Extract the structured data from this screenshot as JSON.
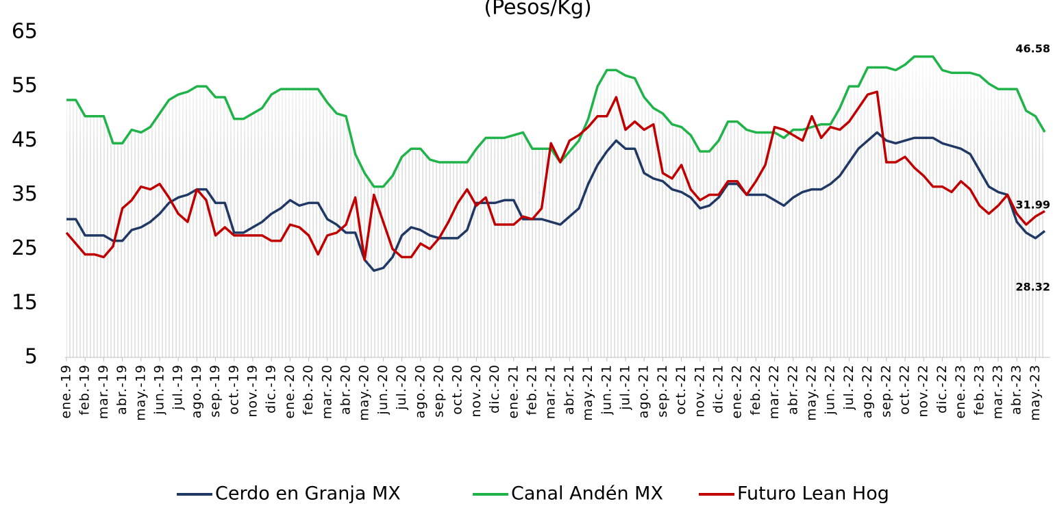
{
  "chart_data": {
    "type": "line",
    "title": "(Pesos/Kg)",
    "categories": [
      "ene.-19",
      null,
      "feb.-19",
      null,
      "mar.-19",
      null,
      "abr.-19",
      null,
      "may.-19",
      null,
      "jun.-19",
      null,
      "jul.-19",
      null,
      "ago.-19",
      null,
      "sep.-19",
      null,
      "oct.-19",
      null,
      "nov.-19",
      null,
      "dic.-19",
      null,
      "ene.-20",
      null,
      "feb.-20",
      null,
      "mar.-20",
      null,
      "abr.-20",
      null,
      "may.-20",
      null,
      "jun.-20",
      null,
      "jul.-20",
      null,
      "ago.-20",
      null,
      "sep.-20",
      null,
      "oct.-20",
      null,
      "nov.-20",
      null,
      "dic.-20",
      null,
      "ene.-21",
      null,
      "feb.-21",
      null,
      "mar.-21",
      null,
      "abr.-21",
      null,
      "may.-21",
      null,
      "jun.-21",
      null,
      "jul.-21",
      null,
      "ago.-21",
      null,
      "sep.-21",
      null,
      "oct.-21",
      null,
      "nov.-21",
      null,
      "dic.-21",
      null,
      "ene.-22",
      null,
      "feb.-22",
      null,
      "mar.-22",
      null,
      "abr.-22",
      null,
      "may.-22",
      null,
      "jun.-22",
      null,
      "jul.-22",
      null,
      "ago.-22",
      null,
      "sep.-22",
      null,
      "oct.-22",
      null,
      "nov.-22",
      null,
      "dic.-22",
      null,
      "ene.-23",
      null,
      "feb.-23",
      null,
      "mar.-23",
      null,
      "abr.-23",
      null,
      "may.-23",
      null
    ],
    "series": [
      {
        "name": "Cerdo en Granja MX",
        "color": "#203864",
        "values": [
          30.5,
          30.5,
          27.5,
          27.5,
          27.5,
          26.5,
          26.5,
          28.5,
          29,
          30,
          31.5,
          33.5,
          34.5,
          35,
          36,
          36,
          33.5,
          33.5,
          28,
          28,
          29,
          30,
          31.5,
          32.5,
          34,
          33,
          33.5,
          33.5,
          30.5,
          29.5,
          28,
          28,
          23,
          21,
          21.5,
          23.5,
          27.5,
          29,
          28.5,
          27.5,
          27,
          27,
          27,
          28.5,
          33.5,
          33.5,
          33.5,
          34,
          34,
          30.5,
          30.5,
          30.5,
          30,
          29.5,
          31,
          32.5,
          37,
          40.5,
          43,
          45,
          43.5,
          43.5,
          39,
          38,
          37.5,
          36,
          35.5,
          34.5,
          32.5,
          33,
          34.5,
          37,
          37,
          35,
          35,
          35,
          34,
          33,
          34.5,
          35.5,
          36,
          36,
          37,
          38.5,
          41,
          43.5,
          45,
          46.5,
          45,
          44.5,
          45,
          45.5,
          45.5,
          45.5,
          44.5,
          44,
          43.5,
          42.5,
          39.5,
          36.5,
          35.5,
          35,
          30,
          28,
          27,
          28.32
        ]
      },
      {
        "name": "Canal Andén MX",
        "color": "#1fb34a",
        "values": [
          52.5,
          52.5,
          49.5,
          49.5,
          49.5,
          44.5,
          44.5,
          47,
          46.5,
          47.5,
          50,
          52.5,
          53.5,
          54,
          55,
          55,
          53,
          53,
          49,
          49,
          50,
          51,
          53.5,
          54.5,
          54.5,
          54.5,
          54.5,
          54.5,
          52,
          50,
          49.5,
          42.5,
          39,
          36.5,
          36.5,
          38.5,
          42,
          43.5,
          43.5,
          41.5,
          41,
          41,
          41,
          41,
          43.5,
          45.5,
          45.5,
          45.5,
          46,
          46.5,
          43.5,
          43.5,
          43.5,
          41,
          43,
          45,
          49,
          55,
          58,
          58,
          57,
          56.5,
          53,
          51,
          50,
          48,
          47.5,
          46,
          43,
          43,
          45,
          48.5,
          48.5,
          47,
          46.5,
          46.5,
          46.5,
          45.5,
          47,
          47,
          47.5,
          48,
          48,
          51,
          55,
          55,
          58.5,
          58.5,
          58.5,
          58,
          59,
          60.5,
          60.5,
          60.5,
          58,
          57.5,
          57.5,
          57.5,
          57,
          55.5,
          54.5,
          54.5,
          54.5,
          50.5,
          49.5,
          46.58
        ]
      },
      {
        "name": "Futuro Lean Hog",
        "color": "#c00000",
        "values": [
          28,
          26,
          24,
          24,
          23.5,
          25.5,
          32.5,
          34,
          36.5,
          36,
          37,
          34.5,
          31.5,
          30,
          36,
          34,
          27.5,
          29,
          27.5,
          27.5,
          27.5,
          27.5,
          26.5,
          26.5,
          29.5,
          29,
          27.5,
          24,
          27.5,
          28,
          29.5,
          34.5,
          23,
          35,
          30,
          25,
          23.5,
          23.5,
          26,
          25,
          27,
          30,
          33.5,
          36,
          33,
          34.5,
          29.5,
          29.5,
          29.5,
          31,
          30.5,
          32.5,
          44.5,
          41,
          45,
          46,
          47.5,
          49.5,
          49.5,
          53,
          47,
          48.5,
          47,
          48,
          39,
          38,
          40.5,
          36,
          34,
          35,
          35,
          37.5,
          37.5,
          35,
          37.5,
          40.5,
          47.5,
          47,
          46,
          45,
          49.5,
          45.5,
          47.5,
          47,
          48.5,
          51,
          53.5,
          54,
          41,
          41,
          42,
          40,
          38.5,
          36.5,
          36.5,
          35.5,
          37.5,
          36,
          33,
          31.5,
          33,
          35,
          31.5,
          29.5,
          31,
          31.99
        ]
      }
    ],
    "ylim": [
      5,
      65
    ],
    "yticks": [
      5,
      15,
      25,
      35,
      45,
      55,
      65
    ],
    "legend": "bottom"
  }
}
